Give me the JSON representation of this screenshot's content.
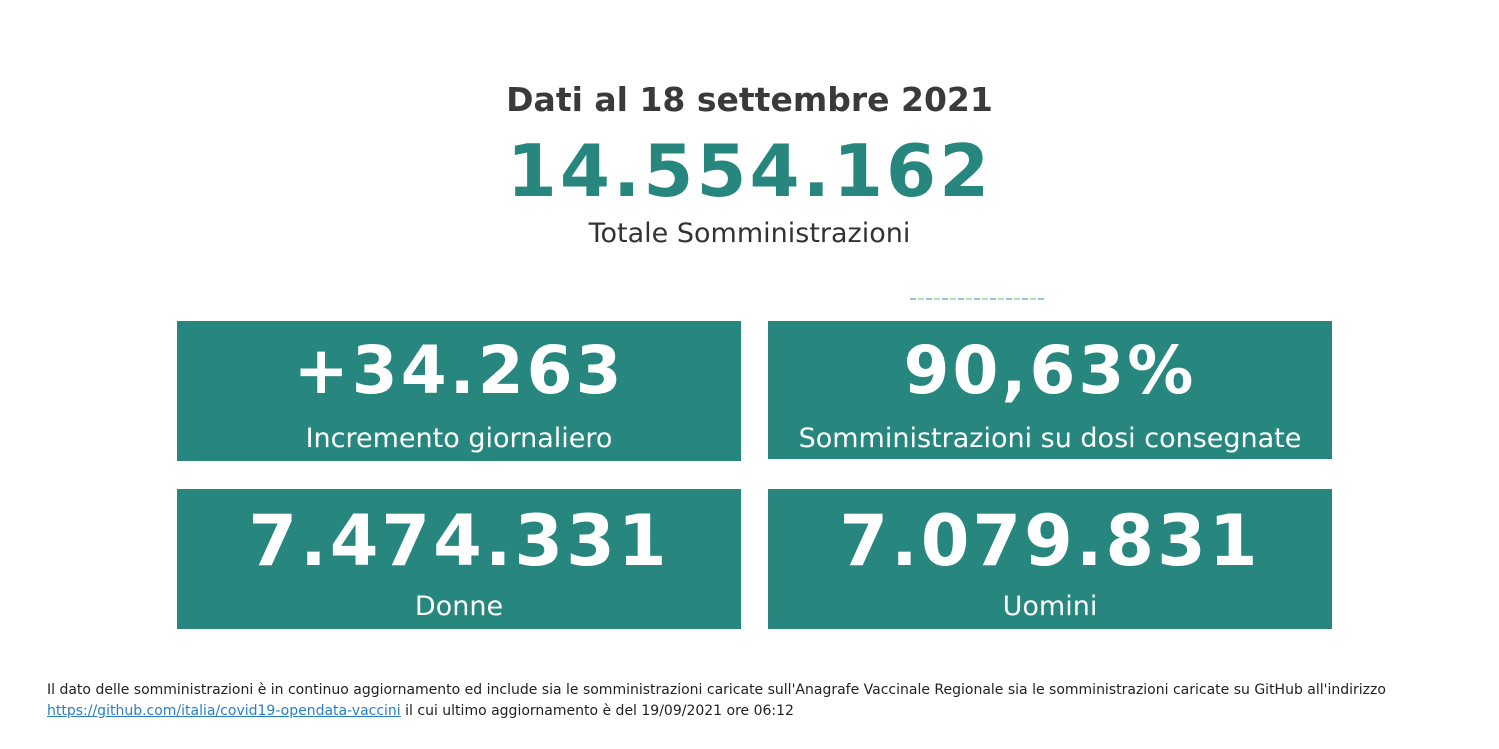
{
  "header": {
    "date_title": "Dati al 18 settembre 2021",
    "total_value": "14.554.162",
    "total_label": "Totale Somministrazioni"
  },
  "cards": {
    "increment": {
      "value": "+34.263",
      "label": "Incremento giornaliero"
    },
    "percent": {
      "value": "90,63%",
      "label": "Somministrazioni su dosi consegnate"
    },
    "women": {
      "value": "7.474.331",
      "label": "Donne"
    },
    "men": {
      "value": "7.079.831",
      "label": "Uomini"
    }
  },
  "footer": {
    "text_before": "Il dato delle somministrazioni è in continuo aggiornamento ed include sia le somministrazioni caricate sull'Anagrafe Vaccinale Regionale sia le somministrazioni caricate su GitHub all'indirizzo",
    "link_text": "https://github.com/italia/covid19-opendata-vaccini",
    "text_after": "il cui ultimo aggiornamento è del 19/09/2021 ore 06:12"
  },
  "colors": {
    "accent": "#27877f",
    "link": "#2a7fc0"
  }
}
